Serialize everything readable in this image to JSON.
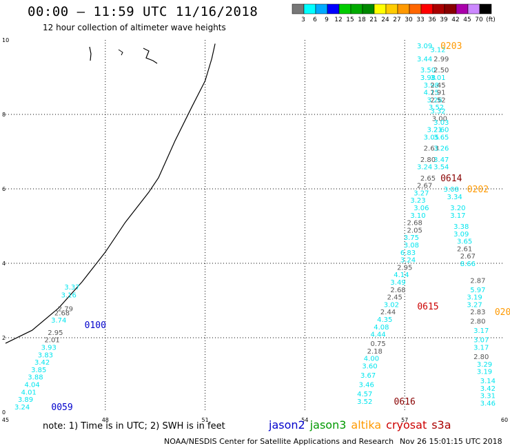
{
  "header": {
    "title": "00:00 – 11:59 UTC 11/16/2018",
    "subtitle": "12 hour collection of altimeter wave heights"
  },
  "colorbar": {
    "labels": [
      "3",
      "6",
      "9",
      "12",
      "15",
      "18",
      "21",
      "24",
      "27",
      "30",
      "33",
      "36",
      "39",
      "42",
      "45",
      "70",
      "(ft)"
    ],
    "colors": [
      "#777777",
      "#00ffff",
      "#00aaff",
      "#0000ff",
      "#00cc00",
      "#00aa00",
      "#008800",
      "#ffff00",
      "#ffcc00",
      "#ff9900",
      "#ff6600",
      "#ff0000",
      "#aa0000",
      "#880000",
      "#aa00aa",
      "#cc88ff",
      "#000000"
    ]
  },
  "footer": {
    "note": "note: 1) Time is in UTC; 2) SWH is in feet",
    "legend": [
      {
        "name": "jason2",
        "color": "#0000cc"
      },
      {
        "name": "jason3",
        "color": "#009900"
      },
      {
        "name": "altika",
        "color": "#ff9900"
      },
      {
        "name": "cryosat",
        "color": "#cc0000"
      },
      {
        "name": "s3a",
        "color": "#aa0000"
      }
    ],
    "credit": "NOAA/NESDIS Center for Satellite Applications and Research",
    "timestamp": "Nov 26 15:01:15 UTC 2018"
  },
  "chart_data": {
    "type": "scatter",
    "xlim": [
      45,
      60
    ],
    "ylim": [
      0,
      10
    ],
    "x_ticks": [
      "45",
      "48",
      "51",
      "54",
      "57",
      "60"
    ],
    "y_ticks": [
      "0",
      "2",
      "4",
      "6",
      "8",
      "10"
    ],
    "grid": true,
    "coastline": [
      [
        45,
        1.85
      ],
      [
        45.8,
        2.2
      ],
      [
        46.6,
        2.8
      ],
      [
        47.3,
        3.5
      ],
      [
        48,
        4.3
      ],
      [
        48.6,
        5.1
      ],
      [
        49.3,
        5.9
      ],
      [
        49.6,
        6.3
      ],
      [
        50.1,
        7.3
      ],
      [
        50.6,
        8.2
      ],
      [
        51,
        8.9
      ],
      [
        51.2,
        9.5
      ],
      [
        51.3,
        9.9
      ]
    ],
    "tracks": [
      {
        "name": "jason2-0100",
        "color": "#0000cc",
        "time_label": "0100",
        "label_pos": [
          47.7,
          2.35
        ],
        "points": [
          [
            47.0,
            3.37,
            "3.37",
            "#00e5ee"
          ],
          [
            46.9,
            3.16,
            "3.16",
            "#00e5ee"
          ],
          [
            46.8,
            2.79,
            "2.79",
            "#555555"
          ],
          [
            46.7,
            2.68,
            "2.68",
            "#555555"
          ],
          [
            46.6,
            2.48,
            "3.74",
            "#00e5ee"
          ],
          [
            46.5,
            2.15,
            "2.95",
            "#555555"
          ],
          [
            46.4,
            1.95,
            "2.01",
            "#555555"
          ],
          [
            46.3,
            1.75,
            "3.93",
            "#00e5ee"
          ],
          [
            46.2,
            1.55,
            "3.83",
            "#00e5ee"
          ],
          [
            46.1,
            1.35,
            "3.42",
            "#00e5ee"
          ],
          [
            46.0,
            1.15,
            "3.85",
            "#00e5ee"
          ],
          [
            45.9,
            0.95,
            "3.88",
            "#00e5ee"
          ],
          [
            45.8,
            0.75,
            "4.04",
            "#00e5ee"
          ],
          [
            45.7,
            0.55,
            "4.01",
            "#00e5ee"
          ],
          [
            45.6,
            0.35,
            "3.89",
            "#00e5ee"
          ],
          [
            45.5,
            0.15,
            "3.24",
            "#00e5ee"
          ]
        ]
      },
      {
        "name": "jason2-0059",
        "color": "#0000cc",
        "time_label": "0059",
        "label_pos": [
          46.7,
          0.15
        ],
        "points": []
      },
      {
        "name": "altika-0203",
        "color": "#ff9900",
        "time_label": "0203",
        "label_pos": [
          58.4,
          9.85
        ],
        "points": [
          [
            57.6,
            9.85,
            "3.09",
            "#00e5ee"
          ],
          [
            58.0,
            9.75,
            "3.12",
            "#00e5ee"
          ],
          [
            57.6,
            9.5,
            "3.44",
            "#00e5ee"
          ],
          [
            58.1,
            9.5,
            "2.99",
            "#555555"
          ],
          [
            57.7,
            9.2,
            "3.50",
            "#00e5ee"
          ],
          [
            58.1,
            9.2,
            "2.50",
            "#555555"
          ],
          [
            57.7,
            9.0,
            "3.98",
            "#00e5ee"
          ],
          [
            58.0,
            9.0,
            "3.01",
            "#00e5ee"
          ],
          [
            57.8,
            8.8,
            "3.98",
            "#00e5ee"
          ],
          [
            58.0,
            8.8,
            "2.45",
            "#555555"
          ],
          [
            57.8,
            8.6,
            "4.15",
            "#00e5ee"
          ],
          [
            58.0,
            8.6,
            "2.91",
            "#555555"
          ],
          [
            57.9,
            8.4,
            "3.26",
            "#00e5ee"
          ],
          [
            58.0,
            8.4,
            "2.52",
            "#555555"
          ],
          [
            57.95,
            8.2,
            "3.52",
            "#00e5ee"
          ],
          [
            58.0,
            8.1,
            "3.32",
            "#00e5ee"
          ],
          [
            58.05,
            7.9,
            "3.00",
            "#555555"
          ],
          [
            58.1,
            7.8,
            "3.03",
            "#00e5ee"
          ],
          [
            57.9,
            7.6,
            "3.21",
            "#00e5ee"
          ],
          [
            58.1,
            7.6,
            "2.60",
            "#00e5ee"
          ],
          [
            57.8,
            7.4,
            "3.05",
            "#00e5ee"
          ],
          [
            58.1,
            7.4,
            "3.65",
            "#00e5ee"
          ],
          [
            57.8,
            7.1,
            "2.63",
            "#555555"
          ],
          [
            58.1,
            7.1,
            "3.26",
            "#00e5ee"
          ],
          [
            57.7,
            6.8,
            "2.80",
            "#555555"
          ],
          [
            58.1,
            6.8,
            "3.47",
            "#00e5ee"
          ],
          [
            57.6,
            6.6,
            "3.24",
            "#00e5ee"
          ],
          [
            58.1,
            6.6,
            "3.54",
            "#00e5ee"
          ]
        ]
      },
      {
        "name": "s3a-0614",
        "color": "#880000",
        "time_label": "0614",
        "label_pos": [
          58.4,
          6.3
        ],
        "points": [
          [
            57.7,
            6.3,
            "2.65",
            "#555555"
          ],
          [
            57.6,
            6.1,
            "2.67",
            "#555555"
          ],
          [
            58.4,
            6.0,
            "3.08",
            "#00e5ee"
          ],
          [
            57.5,
            5.9,
            "3.27",
            "#00e5ee"
          ],
          [
            58.5,
            5.8,
            "3.34",
            "#00e5ee"
          ],
          [
            57.4,
            5.7,
            "3.23",
            "#00e5ee"
          ]
        ]
      },
      {
        "name": "altika-0202",
        "color": "#ff9900",
        "time_label": "0202",
        "label_pos": [
          59.2,
          6.0
        ],
        "points": [
          [
            57.5,
            5.5,
            "3.06",
            "#00e5ee"
          ],
          [
            58.6,
            5.5,
            "3.20",
            "#00e5ee"
          ],
          [
            57.4,
            5.3,
            "3.10",
            "#00e5ee"
          ],
          [
            58.6,
            5.3,
            "3.17",
            "#00e5ee"
          ],
          [
            57.3,
            5.1,
            "2.68",
            "#555555"
          ],
          [
            58.7,
            5.0,
            "3.38",
            "#00e5ee"
          ],
          [
            57.3,
            4.9,
            "2.05",
            "#555555"
          ],
          [
            58.7,
            4.8,
            "3.09",
            "#00e5ee"
          ],
          [
            57.2,
            4.7,
            "3.75",
            "#00e5ee"
          ],
          [
            58.8,
            4.6,
            "3.65",
            "#00e5ee"
          ],
          [
            57.2,
            4.5,
            "3.08",
            "#00e5ee"
          ],
          [
            58.8,
            4.4,
            "2.61",
            "#555555"
          ],
          [
            57.1,
            4.3,
            "6.83",
            "#00e5ee"
          ],
          [
            58.9,
            4.2,
            "2.67",
            "#555555"
          ],
          [
            57.1,
            4.1,
            "3.24",
            "#00e5ee"
          ],
          [
            58.9,
            4.0,
            "8.66",
            "#00e5ee"
          ],
          [
            57.0,
            3.9,
            "2.95",
            "#555555"
          ]
        ]
      },
      {
        "name": "cryosat-0615",
        "color": "#cc0000",
        "time_label": "0615",
        "label_pos": [
          57.7,
          2.85
        ],
        "points": [
          [
            56.9,
            3.7,
            "4.14",
            "#00e5ee"
          ],
          [
            59.2,
            3.55,
            "2.87",
            "#555555"
          ],
          [
            56.8,
            3.5,
            "3.49",
            "#00e5ee"
          ],
          [
            59.2,
            3.3,
            "5.97",
            "#00e5ee"
          ],
          [
            56.8,
            3.3,
            "2.68",
            "#555555"
          ],
          [
            59.1,
            3.1,
            "3.19",
            "#00e5ee"
          ],
          [
            56.7,
            3.1,
            "2.45",
            "#555555"
          ],
          [
            59.1,
            2.9,
            "3.27",
            "#00e5ee"
          ],
          [
            56.6,
            2.9,
            "3.02",
            "#00e5ee"
          ],
          [
            59.2,
            2.7,
            "2.83",
            "#555555"
          ],
          [
            56.5,
            2.7,
            "2.44",
            "#555555"
          ],
          [
            59.2,
            2.45,
            "2.80",
            "#555555"
          ],
          [
            56.4,
            2.5,
            "4.35",
            "#00e5ee"
          ],
          [
            59.3,
            2.2,
            "3.17",
            "#00e5ee"
          ],
          [
            56.3,
            2.3,
            "4.08",
            "#00e5ee"
          ],
          [
            59.3,
            1.95,
            "3.07",
            "#00e5ee"
          ],
          [
            56.2,
            2.1,
            "4.44",
            "#00e5ee"
          ],
          [
            59.3,
            1.75,
            "3.17",
            "#00e5ee"
          ],
          [
            56.2,
            1.85,
            "0.75",
            "#555555"
          ],
          [
            59.3,
            1.5,
            "2.80",
            "#555555"
          ],
          [
            56.1,
            1.65,
            "2.18",
            "#555555"
          ],
          [
            59.4,
            1.3,
            "3.29",
            "#00e5ee"
          ],
          [
            56.0,
            1.45,
            "4.00",
            "#00e5ee"
          ],
          [
            59.4,
            1.1,
            "3.19",
            "#00e5ee"
          ],
          [
            55.95,
            1.25,
            "3.60",
            "#00e5ee"
          ],
          [
            59.5,
            0.85,
            "3.14",
            "#00e5ee"
          ],
          [
            55.9,
            1.0,
            "3.67",
            "#00e5ee"
          ],
          [
            59.5,
            0.65,
            "3.42",
            "#00e5ee"
          ],
          [
            55.85,
            0.75,
            "3.46",
            "#00e5ee"
          ],
          [
            59.5,
            0.45,
            "3.31",
            "#00e5ee"
          ],
          [
            55.8,
            0.5,
            "4.57",
            "#00e5ee"
          ],
          [
            59.5,
            0.25,
            "3.46",
            "#00e5ee"
          ],
          [
            55.8,
            0.3,
            "3.52",
            "#00e5ee"
          ]
        ]
      },
      {
        "name": "s3a-0616",
        "color": "#880000",
        "time_label": "0616",
        "label_pos": [
          57.0,
          0.3
        ],
        "points": []
      },
      {
        "name": "altika-020",
        "color": "#ff9900",
        "time_label": "020",
        "label_pos": [
          59.95,
          2.7
        ],
        "points": []
      }
    ]
  }
}
